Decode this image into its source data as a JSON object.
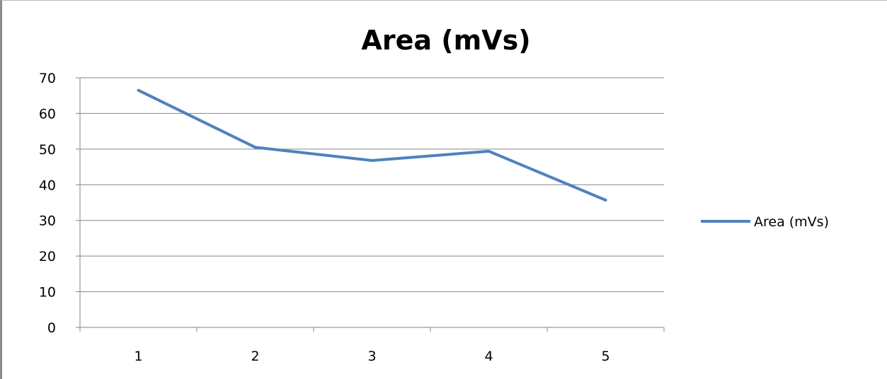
{
  "chart_data": {
    "type": "line",
    "title": "Area (mVs)",
    "xlabel": "",
    "ylabel": "",
    "categories": [
      "1",
      "2",
      "3",
      "4",
      "5"
    ],
    "series": [
      {
        "name": "Area (mVs)",
        "values": [
          66.5,
          50.5,
          46.8,
          49.4,
          35.7
        ],
        "color": "#4f81bd"
      }
    ],
    "ylim": [
      0,
      70
    ],
    "yticks": [
      "0",
      "10",
      "20",
      "30",
      "40",
      "50",
      "60",
      "70"
    ],
    "grid": true,
    "legend": "right"
  }
}
